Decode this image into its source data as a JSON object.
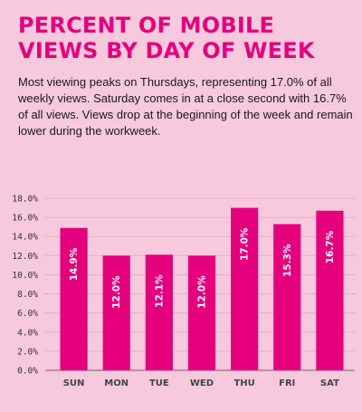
{
  "header": {
    "title": "PERCENT OF MOBILE VIEWS BY DAY OF WEEK",
    "description": "Most viewing peaks on Thursdays, representing 17.0% of all weekly views. Saturday comes in at a close second with 16.7% of all views.  Views drop at the beginning of the week and remain lower during the workweek."
  },
  "colors": {
    "background": "#f7c9dc",
    "bar": "#e5007e",
    "title": "#e5007e",
    "grid": "#e7a9c4"
  },
  "chart_data": {
    "type": "bar",
    "title": "PERCENT OF MOBILE VIEWS BY DAY OF WEEK",
    "xlabel": "",
    "ylabel": "",
    "categories": [
      "SUN",
      "MON",
      "TUE",
      "WED",
      "THU",
      "FRI",
      "SAT"
    ],
    "values": [
      14.9,
      12.0,
      12.1,
      12.0,
      17.0,
      15.3,
      16.7
    ],
    "value_labels": [
      "14.9%",
      "12.0%",
      "12.1%",
      "12.0%",
      "17.0%",
      "15.3%",
      "16.7%"
    ],
    "ylim": [
      0,
      18
    ],
    "yticks": [
      0,
      2,
      4,
      6,
      8,
      10,
      12,
      14,
      16,
      18
    ],
    "ytick_labels": [
      "0.0%",
      "2.0%",
      "4.0%",
      "6.0%",
      "8.0%",
      "10.0%",
      "12.0%",
      "14.0%",
      "16.0%",
      "18.0%"
    ],
    "grid": true,
    "legend": "none"
  }
}
